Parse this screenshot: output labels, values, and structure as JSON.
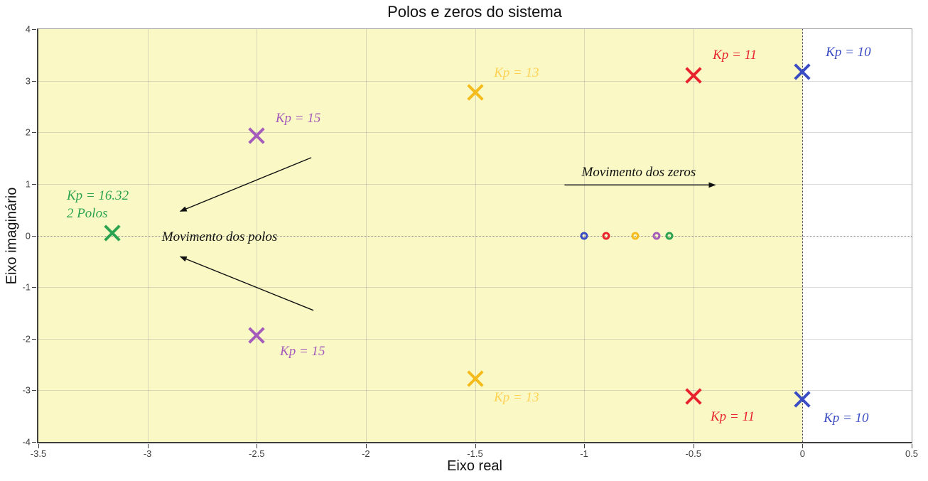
{
  "chart_data": {
    "type": "scatter",
    "title": "Polos e zeros do sistema",
    "xlabel": "Eixo real",
    "ylabel": "Eixo imaginário",
    "xlim": [
      -3.5,
      0.5
    ],
    "ylim": [
      -4,
      4
    ],
    "x_ticks": [
      "-3.5",
      "-3",
      "-2.5",
      "-2",
      "-1.5",
      "-1",
      "-0.5",
      "0",
      "0.5"
    ],
    "y_ticks": [
      "-4",
      "-3",
      "-2",
      "-1",
      "0",
      "1",
      "2",
      "3",
      "4"
    ],
    "grid": true,
    "legend": "none",
    "stability_region": {
      "x_from": -3.5,
      "x_to": 0,
      "fill": "#FAF9C5"
    },
    "imag_axis_line": {
      "x": 0,
      "style": "dotted",
      "color": "#3a3a3a"
    },
    "real_axis_line": {
      "y": 0,
      "style": "dotted",
      "color": "#8a8a8a"
    },
    "series": [
      {
        "name": "Kp = 10",
        "color": "#3A4CC4",
        "poles": [
          [
            0,
            3.17
          ],
          [
            0,
            -3.17
          ]
        ],
        "zeros": [
          [
            -1.0,
            0
          ]
        ],
        "labels": [
          {
            "text": "Kp = 10",
            "x": 0.21,
            "y": 3.55
          },
          {
            "text": "Kp = 10",
            "x": 0.2,
            "y": -3.55
          }
        ]
      },
      {
        "name": "Kp = 11",
        "color": "#E8232E",
        "poles": [
          [
            -0.5,
            3.1
          ],
          [
            -0.5,
            -3.12
          ]
        ],
        "zeros": [
          [
            -0.9,
            0
          ]
        ],
        "labels": [
          {
            "text": "Kp = 11",
            "x": -0.31,
            "y": 3.49
          },
          {
            "text": "Kp = 11",
            "x": -0.32,
            "y": -3.52
          }
        ]
      },
      {
        "name": "Kp = 13",
        "color": "#F5BB1C",
        "label_color": "#FFD155",
        "poles": [
          [
            -1.5,
            2.78
          ],
          [
            -1.5,
            -2.78
          ]
        ],
        "zeros": [
          [
            -0.765,
            0
          ]
        ],
        "labels": [
          {
            "text": "Kp = 13",
            "x": -1.31,
            "y": 3.14
          },
          {
            "text": "Kp = 13",
            "x": -1.31,
            "y": -3.14
          }
        ]
      },
      {
        "name": "Kp = 15",
        "color": "#A55BBB",
        "poles": [
          [
            -2.5,
            1.93
          ],
          [
            -2.5,
            -1.93
          ]
        ],
        "zeros": [
          [
            -0.667,
            0
          ]
        ],
        "labels": [
          {
            "text": "Kp = 15",
            "x": -2.31,
            "y": 2.27
          },
          {
            "text": "Kp = 15",
            "x": -2.29,
            "y": -2.25
          }
        ]
      },
      {
        "name": "Kp = 16.32",
        "color": "#2BA350",
        "poles": [
          [
            -3.16,
            0.05
          ]
        ],
        "zeros": [
          [
            -0.61,
            0
          ]
        ],
        "labels": [
          {
            "lines": [
              "Kp = 16.32",
              "2 Polos"
            ],
            "x": -3.37,
            "y": 0.95,
            "align": "left"
          }
        ]
      }
    ],
    "annotations": [
      {
        "text": "Movimento dos zeros",
        "text_x": -0.75,
        "text_y": 1.22,
        "arrows": [
          {
            "x1": -1.09,
            "y1": 0.98,
            "x2": -0.4,
            "y2": 0.98
          }
        ]
      },
      {
        "text": "Movimento dos polos",
        "text_x": -2.67,
        "text_y": -0.04,
        "arrows": [
          {
            "x1": -2.25,
            "y1": 1.51,
            "x2": -2.85,
            "y2": 0.47
          },
          {
            "x1": -2.24,
            "y1": -1.45,
            "x2": -2.85,
            "y2": -0.41
          }
        ]
      }
    ]
  }
}
